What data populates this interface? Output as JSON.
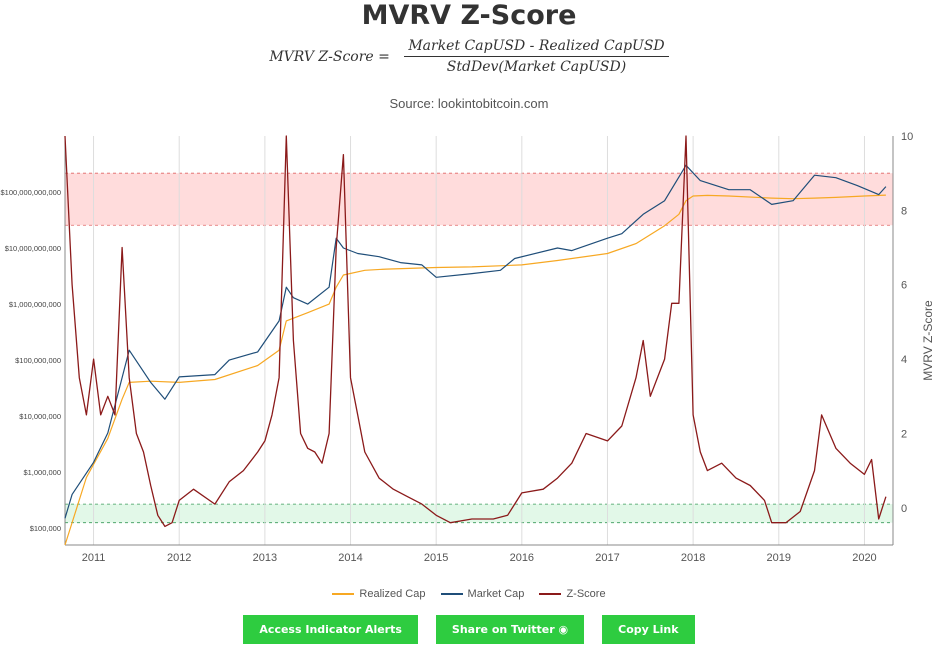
{
  "page": {
    "title": "MVRV Z-Score",
    "formula": {
      "lhs": "MVRV Z-Score =",
      "numerator": "Market CapUSD - Realized CapUSD",
      "denominator": "StdDev(Market CapUSD)"
    },
    "source": "Source: lookintobitcoin.com"
  },
  "buttons": {
    "alerts": "Access Indicator Alerts",
    "twitter": "Share on Twitter",
    "copy": "Copy Link"
  },
  "colors": {
    "realized": "#f7a823",
    "market": "#1f4e79",
    "zscore": "#8b1a1a",
    "red_band": "#ffd6d6",
    "green_band": "#dff7e6",
    "button": "#2ecc40"
  },
  "chart_data": {
    "type": "line",
    "title": "MVRV Z-Score",
    "x_ticks": [
      "2011",
      "2012",
      "2013",
      "2014",
      "2015",
      "2016",
      "2017",
      "2018",
      "2019",
      "2020"
    ],
    "xlim": [
      "2010-09",
      "2020-05"
    ],
    "y_left": {
      "scale": "log",
      "ticks": [
        "$100,000",
        "$1,000,000",
        "$10,000,000",
        "$100,000,000",
        "$1,000,000,000",
        "$10,000,000,000",
        "$100,000,000,000"
      ],
      "lim": [
        50000,
        1000000000000
      ]
    },
    "y_right": {
      "label": "MVRV Z-Score",
      "ticks": [
        "0",
        "2",
        "4",
        "6",
        "8",
        "10"
      ],
      "lim": [
        -1,
        10
      ]
    },
    "bands": {
      "red_zscore": [
        7.6,
        9.0
      ],
      "green_zscore": [
        -0.4,
        0.1
      ]
    },
    "series": [
      {
        "name": "Realized Cap",
        "axis": "left",
        "x": [
          "2010-09",
          "2010-12",
          "2011-03",
          "2011-05",
          "2011-06",
          "2011-09",
          "2012-01",
          "2012-06",
          "2012-12",
          "2013-03",
          "2013-04",
          "2013-07",
          "2013-10",
          "2013-11",
          "2013-12",
          "2014-03",
          "2014-06",
          "2015-01",
          "2015-06",
          "2016-01",
          "2016-06",
          "2017-01",
          "2017-05",
          "2017-09",
          "2017-11",
          "2017-12",
          "2018-01",
          "2018-03",
          "2018-06",
          "2018-12",
          "2019-03",
          "2019-06",
          "2019-09",
          "2020-01",
          "2020-04"
        ],
        "y": [
          50000,
          800000,
          4000000,
          20000000,
          40000000,
          42000000,
          40000000,
          45000000,
          80000000,
          150000000,
          500000000,
          700000000,
          1000000000,
          2000000000,
          3300000000,
          4000000000,
          4200000000,
          4500000000,
          4600000000,
          5000000000,
          6000000000,
          8000000000,
          12000000000,
          25000000000,
          40000000000,
          70000000000,
          85000000000,
          87000000000,
          85000000000,
          78000000000,
          76000000000,
          78000000000,
          80000000000,
          85000000000,
          88000000000
        ]
      },
      {
        "name": "Market Cap",
        "axis": "left",
        "x": [
          "2010-09",
          "2010-10",
          "2011-01",
          "2011-03",
          "2011-06",
          "2011-09",
          "2011-11",
          "2012-01",
          "2012-06",
          "2012-08",
          "2012-12",
          "2013-03",
          "2013-04",
          "2013-05",
          "2013-07",
          "2013-10",
          "2013-11",
          "2013-12",
          "2014-02",
          "2014-05",
          "2014-08",
          "2014-11",
          "2015-01",
          "2015-06",
          "2015-10",
          "2015-12",
          "2016-06",
          "2016-08",
          "2017-01",
          "2017-03",
          "2017-06",
          "2017-09",
          "2017-12",
          "2018-02",
          "2018-06",
          "2018-09",
          "2018-12",
          "2019-03",
          "2019-06",
          "2019-09",
          "2019-12",
          "2020-03",
          "2020-04"
        ],
        "y": [
          150000,
          400000,
          1500000,
          5000000,
          150000000,
          40000000,
          20000000,
          50000000,
          55000000,
          100000000,
          140000000,
          500000000,
          2000000000,
          1300000000,
          1000000000,
          2000000000,
          15000000000,
          10000000000,
          8000000000,
          7000000000,
          5500000000,
          5000000000,
          3000000000,
          3500000000,
          4000000000,
          6500000000,
          10000000000,
          9000000000,
          15000000000,
          18000000000,
          40000000000,
          70000000000,
          300000000000,
          160000000000,
          110000000000,
          110000000000,
          60000000000,
          70000000000,
          200000000000,
          180000000000,
          130000000000,
          90000000000,
          125000000000
        ]
      },
      {
        "name": "Z-Score",
        "axis": "right",
        "x": [
          "2010-09",
          "2010-10",
          "2010-11",
          "2010-12",
          "2011-01",
          "2011-02",
          "2011-03",
          "2011-04",
          "2011-05",
          "2011-06",
          "2011-07",
          "2011-08",
          "2011-09",
          "2011-10",
          "2011-11",
          "2011-12",
          "2012-01",
          "2012-03",
          "2012-06",
          "2012-08",
          "2012-10",
          "2012-12",
          "2013-01",
          "2013-02",
          "2013-03",
          "2013-04",
          "2013-05",
          "2013-06",
          "2013-07",
          "2013-08",
          "2013-09",
          "2013-10",
          "2013-11",
          "2013-12",
          "2014-01",
          "2014-02",
          "2014-03",
          "2014-05",
          "2014-07",
          "2014-09",
          "2014-11",
          "2015-01",
          "2015-03",
          "2015-06",
          "2015-09",
          "2015-11",
          "2016-01",
          "2016-04",
          "2016-06",
          "2016-08",
          "2016-10",
          "2017-01",
          "2017-03",
          "2017-05",
          "2017-06",
          "2017-07",
          "2017-09",
          "2017-10",
          "2017-11",
          "2017-12",
          "2018-01",
          "2018-02",
          "2018-03",
          "2018-05",
          "2018-07",
          "2018-09",
          "2018-11",
          "2018-12",
          "2019-02",
          "2019-04",
          "2019-06",
          "2019-07",
          "2019-09",
          "2019-11",
          "2020-01",
          "2020-02",
          "2020-03",
          "2020-04"
        ],
        "y": [
          10,
          6,
          3.5,
          2.5,
          4,
          2.5,
          3,
          2.5,
          7,
          3.5,
          2,
          1.5,
          0.6,
          -0.2,
          -0.5,
          -0.4,
          0.2,
          0.5,
          0.1,
          0.7,
          1.0,
          1.5,
          1.8,
          2.5,
          3.5,
          10,
          4.5,
          2.0,
          1.6,
          1.5,
          1.2,
          2.0,
          7,
          9.5,
          3.5,
          2.5,
          1.5,
          0.8,
          0.5,
          0.3,
          0.1,
          -0.2,
          -0.4,
          -0.3,
          -0.3,
          -0.2,
          0.4,
          0.5,
          0.8,
          1.2,
          2.0,
          1.8,
          2.2,
          3.5,
          4.5,
          3.0,
          4.0,
          5.5,
          5.5,
          10,
          2.5,
          1.5,
          1.0,
          1.2,
          0.8,
          0.6,
          0.2,
          -0.4,
          -0.4,
          -0.1,
          1.0,
          2.5,
          1.6,
          1.2,
          0.9,
          1.3,
          -0.3,
          0.3
        ]
      }
    ]
  }
}
